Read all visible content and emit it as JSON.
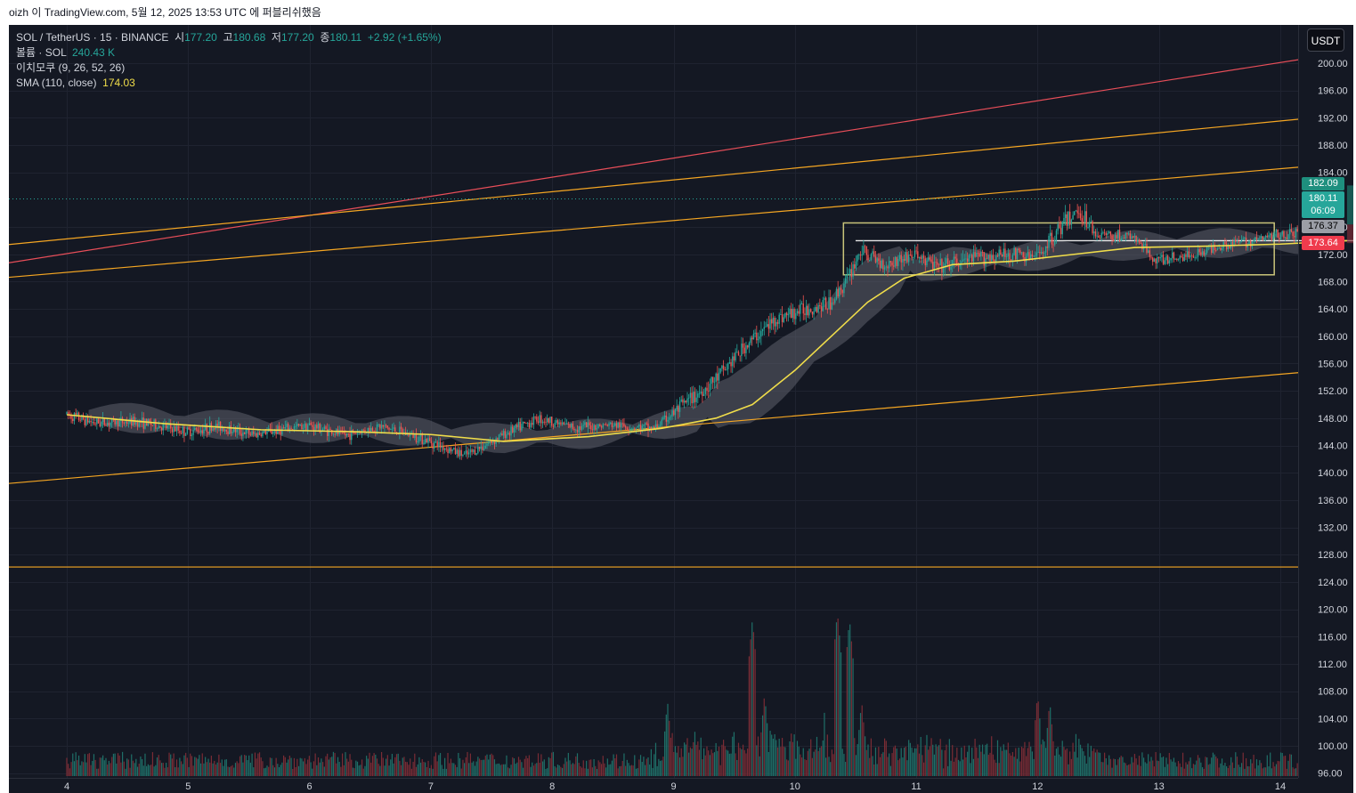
{
  "header": {
    "caption": "oizh 이 TradingView.com, 5월 12, 2025 13:53 UTC 에 퍼블리쉬했음"
  },
  "legend": {
    "symbol": "SOL / TetherUS · 15 · BINANCE",
    "open_label": "시",
    "open": "177.20",
    "high_label": "고",
    "high": "180.68",
    "low_label": "저",
    "low": "177.20",
    "close_label": "종",
    "close": "180.11",
    "change": "+2.92 (+1.65%)",
    "volume_label": "볼륨 · SOL",
    "volume": "240.43 K",
    "ichimoku_label": "이치모쿠 (9, 26, 52, 26)",
    "sma_label": "SMA (110, close)",
    "sma_value": "174.03"
  },
  "currency_button": "USDT",
  "price_tags": {
    "tp": "182.09",
    "last_price": "180.11",
    "countdown": "06:09",
    "entry": "176.37",
    "sl": "173.64"
  },
  "colors": {
    "background": "#141823",
    "up": "#26a69a",
    "down": "#ef5350",
    "trend_orange": "#f5a623",
    "trend_red": "#e84e59",
    "sma": "#f0dd4a",
    "box": "#c9c47a",
    "cloud": "#5d606b"
  },
  "chart_data": {
    "type": "candlestick",
    "y_axis_ticks": [
      "200.00",
      "196.00",
      "192.00",
      "188.00",
      "184.00",
      "176.00",
      "172.00",
      "168.00",
      "164.00",
      "160.00",
      "156.00",
      "152.00",
      "148.00",
      "144.00",
      "140.00",
      "136.00",
      "132.00",
      "128.00",
      "124.00",
      "120.00",
      "116.00",
      "112.00",
      "108.00",
      "104.00",
      "100.00",
      "96.00"
    ],
    "x_axis_ticks": [
      "4",
      "5",
      "6",
      "7",
      "8",
      "9",
      "10",
      "11",
      "12",
      "13",
      "14"
    ],
    "price_path": [
      [
        0,
        148.6
      ],
      [
        0.25,
        147.3
      ],
      [
        0.6,
        147.5
      ],
      [
        1.0,
        146.0
      ],
      [
        1.25,
        146.8
      ],
      [
        1.55,
        145.6
      ],
      [
        2.0,
        147.0
      ],
      [
        2.3,
        145.5
      ],
      [
        2.6,
        146.8
      ],
      [
        2.9,
        145.3
      ],
      [
        3.3,
        142.5
      ],
      [
        3.6,
        145.5
      ],
      [
        3.9,
        148.0
      ],
      [
        4.2,
        146.6
      ],
      [
        4.5,
        147.0
      ],
      [
        4.85,
        146.5
      ],
      [
        5.1,
        150.0
      ],
      [
        5.35,
        153.5
      ],
      [
        5.6,
        158.5
      ],
      [
        5.85,
        162.5
      ],
      [
        6.1,
        164.0
      ],
      [
        6.3,
        164.8
      ],
      [
        6.45,
        168.5
      ],
      [
        6.55,
        172.5
      ],
      [
        6.75,
        170.5
      ],
      [
        7.0,
        172.0
      ],
      [
        7.2,
        170.0
      ],
      [
        7.5,
        171.5
      ],
      [
        7.8,
        172.0
      ],
      [
        8.0,
        171.5
      ],
      [
        8.2,
        176.0
      ],
      [
        8.35,
        178.5
      ],
      [
        8.5,
        175.0
      ],
      [
        8.8,
        174.5
      ],
      [
        9.0,
        171.0
      ],
      [
        9.3,
        172.0
      ],
      [
        9.55,
        173.5
      ],
      [
        9.8,
        174.0
      ],
      [
        10.0,
        175.0
      ],
      [
        10.3,
        175.0
      ],
      [
        10.55,
        178.3
      ]
    ],
    "sma_path": [
      [
        0,
        148.5
      ],
      [
        0.8,
        147.2
      ],
      [
        1.6,
        146.3
      ],
      [
        2.4,
        146.0
      ],
      [
        3.0,
        145.6
      ],
      [
        3.6,
        144.6
      ],
      [
        4.3,
        145.3
      ],
      [
        4.9,
        146.5
      ],
      [
        5.35,
        148.0
      ],
      [
        5.65,
        150.0
      ],
      [
        6.0,
        155.0
      ],
      [
        6.3,
        160.0
      ],
      [
        6.6,
        165.0
      ],
      [
        6.9,
        168.5
      ],
      [
        7.3,
        170.5
      ],
      [
        7.8,
        171.0
      ],
      [
        8.3,
        172.0
      ],
      [
        8.8,
        173.0
      ],
      [
        9.4,
        173.2
      ],
      [
        10.0,
        173.5
      ],
      [
        10.55,
        174.0
      ]
    ],
    "trendlines": [
      {
        "color": "red",
        "from": [
          -0.5,
          170.7
        ],
        "to": [
          10.5,
          201.5
        ]
      },
      {
        "color": "orange",
        "from": [
          -0.5,
          173.4
        ],
        "to": [
          10.5,
          192.4
        ]
      },
      {
        "color": "orange",
        "from": [
          -0.5,
          168.6
        ],
        "to": [
          10.5,
          185.3
        ]
      },
      {
        "color": "orange",
        "from": [
          -0.5,
          138.4
        ],
        "to": [
          10.5,
          155.2
        ]
      },
      {
        "color": "orange",
        "from": [
          -0.5,
          126.2
        ],
        "to": [
          10.5,
          126.2
        ]
      }
    ],
    "range_box": {
      "x": [
        6.4,
        9.95
      ],
      "y": [
        169.0,
        176.6
      ]
    },
    "range_mid_line": {
      "x": [
        6.5,
        10.8
      ],
      "y": 174.0
    },
    "position": {
      "x": [
        10.55,
        11.3
      ],
      "tp": 182.09,
      "entry": 176.37,
      "sl": 173.64
    },
    "volume_spikes": [
      [
        4.95,
        106
      ],
      [
        5.65,
        118
      ],
      [
        5.75,
        107
      ],
      [
        6.35,
        119
      ],
      [
        6.45,
        118
      ],
      [
        6.55,
        106
      ],
      [
        8.0,
        107
      ],
      [
        8.1,
        106
      ],
      [
        10.35,
        122
      ],
      [
        10.55,
        111
      ]
    ]
  }
}
